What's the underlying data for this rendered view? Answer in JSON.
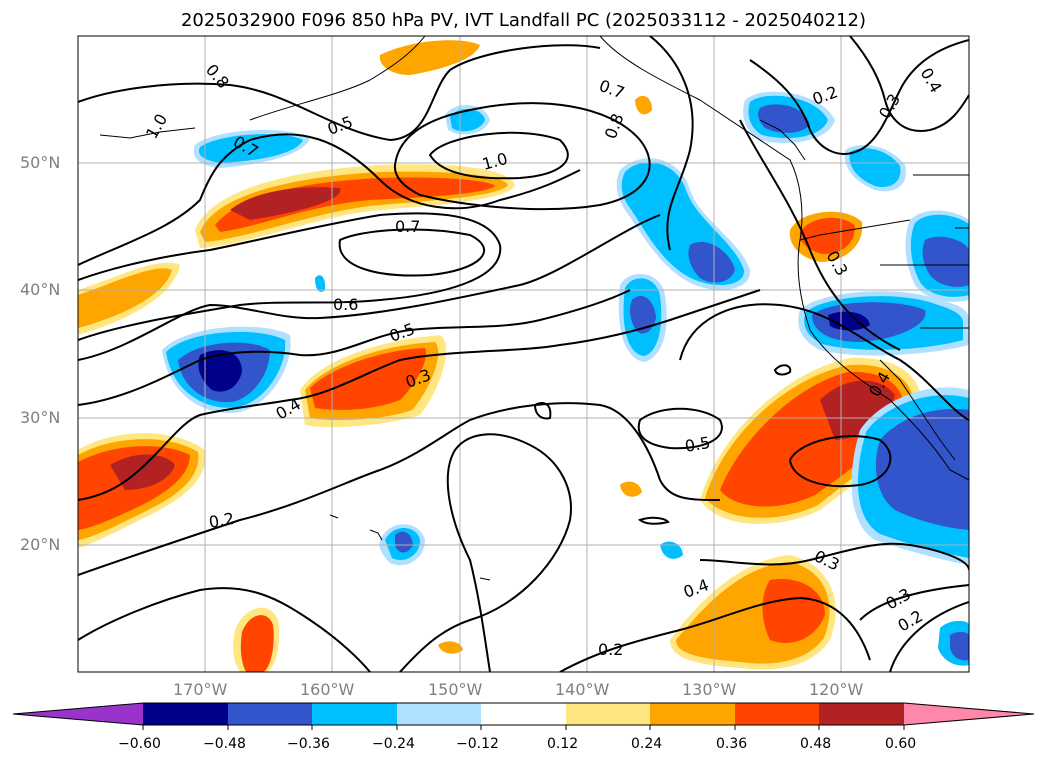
{
  "title": "2025032900 F096 850 hPa PV, IVT Landfall PC (2025033112 - 2025040212)",
  "latitudes": [
    "50°N",
    "40°N",
    "30°N",
    "20°N"
  ],
  "longitudes": [
    "170°W",
    "160°W",
    "150°W",
    "140°W",
    "130°W",
    "120°W"
  ],
  "contour_labels": [
    "0.8",
    "1.0",
    "0.7",
    "0.5",
    "0.7",
    "0.8",
    "1.0",
    "0.7",
    "0.6",
    "0.5",
    "0.3",
    "0.4",
    "0.2",
    "0.5",
    "0.3",
    "0.4",
    "0.2",
    "0.2",
    "0.3",
    "0.3",
    "0.2",
    "0.4",
    "0.3",
    "0.4"
  ],
  "colorbar": {
    "ticks": [
      "−0.60",
      "−0.48",
      "−0.36",
      "−0.24",
      "−0.12",
      "0.12",
      "0.24",
      "0.36",
      "0.48",
      "0.60"
    ],
    "colors": [
      "#9933cc",
      "#00008b",
      "#3355cc",
      "#00bfff",
      "#b0e0ff",
      "#ffffff",
      "#ffe680",
      "#ffa500",
      "#ff4500",
      "#b22222",
      "#ff88aa"
    ]
  }
}
